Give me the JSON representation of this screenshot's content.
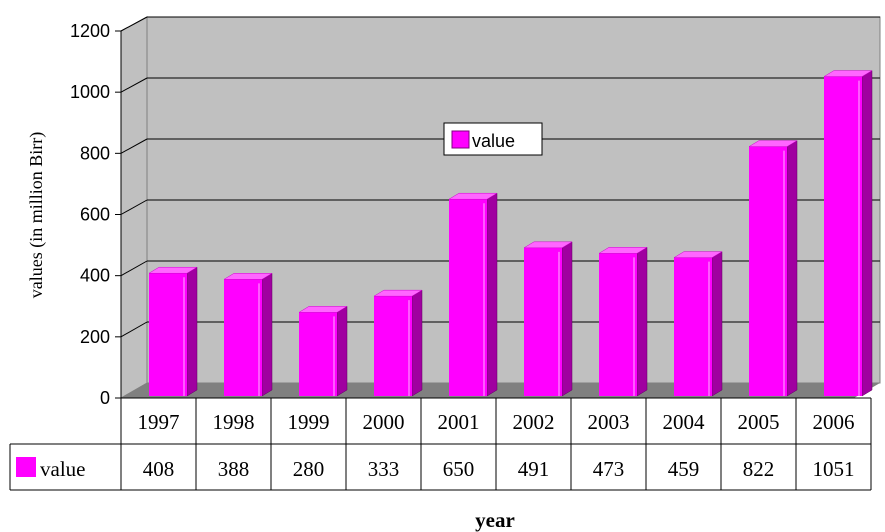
{
  "chart_data": {
    "type": "bar",
    "categories": [
      "1997",
      "1998",
      "1999",
      "2000",
      "2001",
      "2002",
      "2003",
      "2004",
      "2005",
      "2006"
    ],
    "series": [
      {
        "name": "value",
        "values": [
          408,
          388,
          280,
          333,
          650,
          491,
          473,
          459,
          822,
          1051
        ]
      }
    ],
    "xlabel": "year",
    "ylabel": "values (in million Birr)",
    "ylim": [
      0,
      1200
    ],
    "yticks": [
      "0",
      "200",
      "400",
      "600",
      "800",
      "1000",
      "1200"
    ],
    "grid": true,
    "legend": "inside top-center",
    "data_table": true,
    "colors": {
      "bar": "#ff00ff",
      "bar_dark": "#a000a0",
      "wall": "#c0c0c0",
      "floor": "#808080"
    }
  }
}
